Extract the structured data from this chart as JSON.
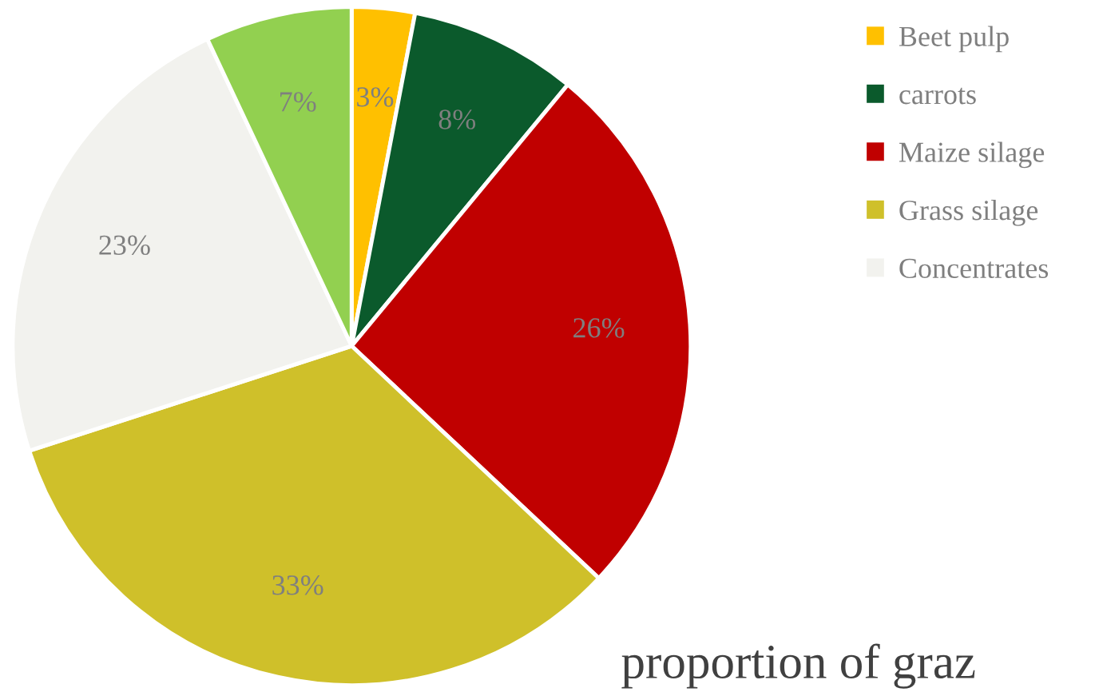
{
  "chart_data": {
    "type": "pie",
    "categories": [
      "Beet pulp",
      "carrots",
      "Maize silage",
      "Grass silage",
      "Concentrates",
      null
    ],
    "values": [
      3,
      8,
      26,
      33,
      23,
      7
    ],
    "colors": [
      "#ffc000",
      "#0b5a2c",
      "#c00000",
      "#cfc02a",
      "#f2f2ee",
      "#92d050"
    ],
    "value_labels": [
      "3%",
      "8%",
      "26%",
      "33%",
      "23%",
      "7%"
    ],
    "legend": "right",
    "annotations": [
      "proportion of graz"
    ]
  }
}
